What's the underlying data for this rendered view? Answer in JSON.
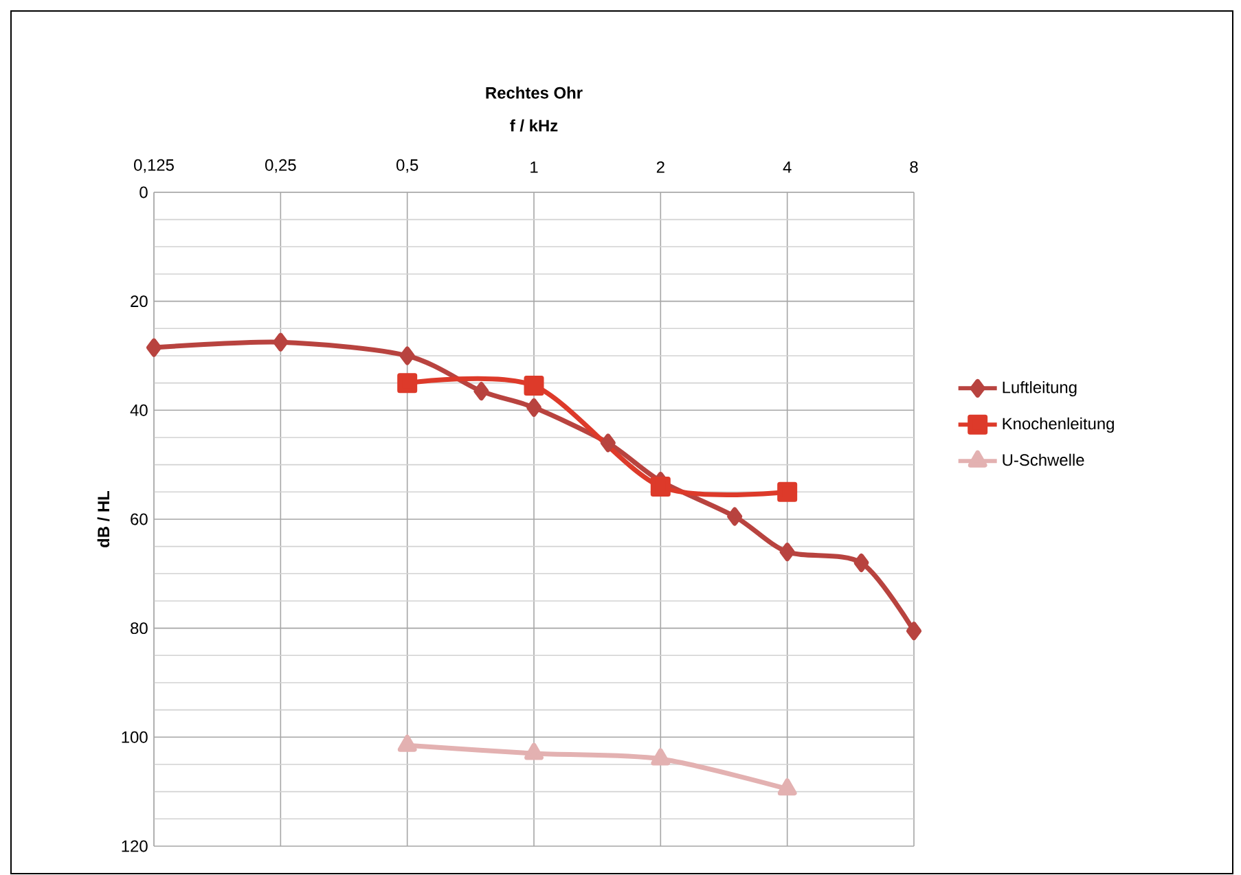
{
  "chart_data": {
    "type": "line",
    "title": "Rechtes Ohr",
    "xlabel": "f / kHz",
    "ylabel": "dB / HL",
    "log": "x",
    "xlim": [
      0.125,
      8
    ],
    "ylim": [
      120,
      0
    ],
    "xticks": [
      {
        "value": 0.125,
        "label": "0,125"
      },
      {
        "value": 0.25,
        "label": "0,25"
      },
      {
        "value": 0.5,
        "label": "0,5"
      },
      1,
      2,
      4,
      8
    ],
    "yticks": [
      0,
      20,
      40,
      60,
      80,
      100,
      120
    ],
    "grid": true,
    "legend": "right",
    "line_style": "solid",
    "series": [
      {
        "name": "Luftleitung",
        "color": "#b8433f",
        "marker": "diamond",
        "x": [
          0.125,
          0.25,
          0.5,
          0.75,
          1,
          1.5,
          2,
          3,
          4,
          6,
          8
        ],
        "values": [
          28.5,
          27.5,
          30,
          36.5,
          39.5,
          46,
          53,
          59.5,
          66,
          68,
          80.5
        ]
      },
      {
        "name": "Knochenleitung",
        "color": "#dd3a2a",
        "marker": "square",
        "x": [
          0.5,
          1,
          2,
          4
        ],
        "values": [
          35,
          35.5,
          54,
          55
        ]
      },
      {
        "name": "U-Schwelle",
        "color": "#e3b1b1",
        "marker": "triangle",
        "x": [
          0.5,
          1,
          2,
          4
        ],
        "values": [
          101.5,
          103,
          104,
          109.5
        ]
      }
    ]
  }
}
